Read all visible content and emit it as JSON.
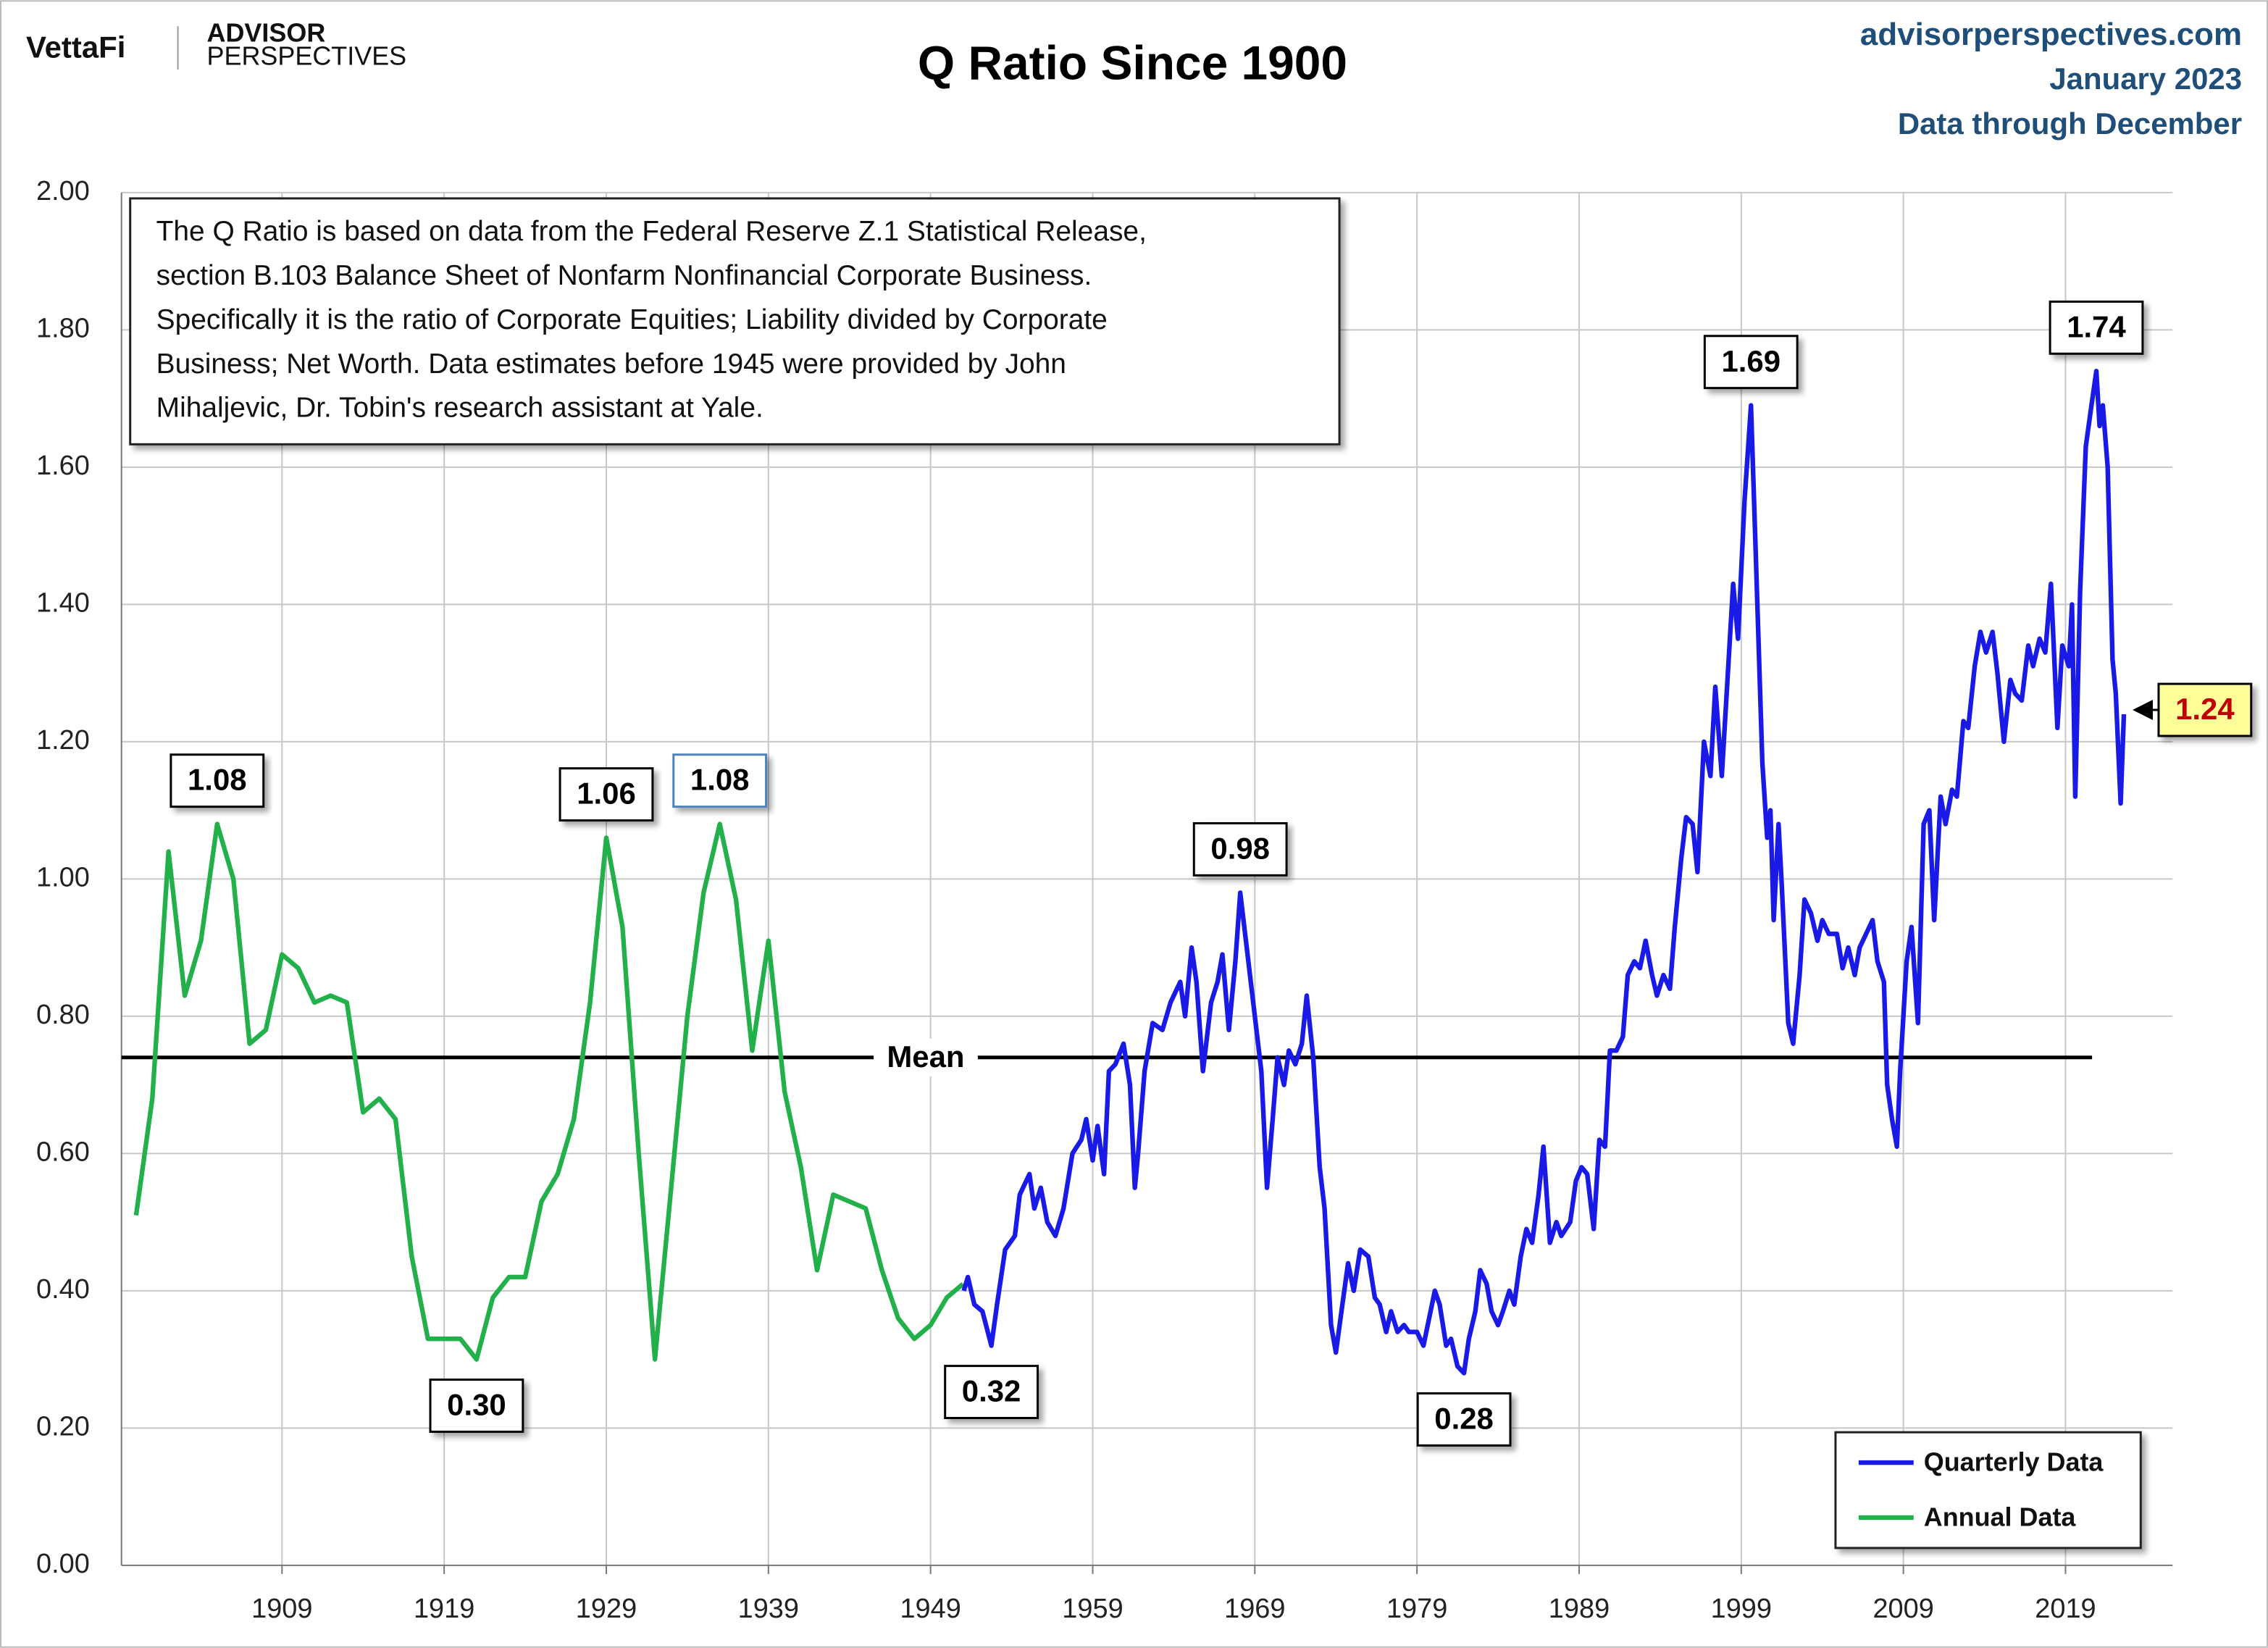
{
  "header": {
    "logo": "VettaFi",
    "brand_top": "ADVISOR",
    "brand_bottom": "PERSPECTIVES",
    "site": "advisorperspectives.com",
    "date": "January 2023",
    "data_note": "Data through December"
  },
  "chart_data": {
    "type": "line",
    "title": "Q Ratio Since 1900",
    "note": [
      "The Q Ratio is based on data from the Federal Reserve Z.1 Statistical Release,",
      "section B.103 Balance Sheet of Nonfarm Nonfinancial Corporate Business.",
      "Specifically it is the ratio  of Corporate Equities; Liability divided by Corporate",
      "Business; Net Worth.  Data estimates before 1945 were provided by John",
      "Mihaljevic, Dr. Tobin's research assistant at Yale."
    ],
    "xlim": [
      1899.1,
      2025.6
    ],
    "xticks": [
      1909,
      1919,
      1929,
      1939,
      1949,
      1959,
      1969,
      1979,
      1989,
      1999,
      2009,
      2019
    ],
    "ylim": [
      0,
      2
    ],
    "yticks": [
      {
        "value": 0,
        "label": "0.00"
      },
      {
        "value": 0.2,
        "label": "0.20"
      },
      {
        "value": 0.4,
        "label": "0.40"
      },
      {
        "value": 0.6,
        "label": "0.60"
      },
      {
        "value": 0.8,
        "label": "0.80"
      },
      {
        "value": 1,
        "label": "1.00"
      },
      {
        "value": 1.2,
        "label": "1.20"
      },
      {
        "value": 1.4,
        "label": "1.40"
      },
      {
        "value": 1.6,
        "label": "1.60"
      },
      {
        "value": 1.8,
        "label": "1.80"
      },
      {
        "value": 2,
        "label": "2.00"
      }
    ],
    "grid": true,
    "legend": "lower right",
    "mean": {
      "label": "Mean",
      "value": 0.74
    },
    "series": [
      {
        "name": "Quarterly Data",
        "color": "#1a1ae6",
        "x": [
          1951.05,
          1951.3,
          1951.7,
          1952.2,
          1952.75,
          1953.1,
          1953.6,
          1954.2,
          1954.5,
          1955.1,
          1955.4,
          1955.8,
          1956.2,
          1956.7,
          1957.2,
          1957.75,
          1958.3,
          1958.6,
          1959,
          1959.3,
          1959.7,
          1960,
          1960.4,
          1960.9,
          1961.3,
          1961.6,
          1961.8,
          1962.2,
          1962.7,
          1963.3,
          1963.8,
          1964.4,
          1964.7,
          1965.1,
          1965.4,
          1965.8,
          1966.3,
          1966.7,
          1967,
          1967.4,
          1967.8,
          1968.1,
          1968.5,
          1969,
          1969.4,
          1969.75,
          1970.1,
          1970.4,
          1970.8,
          1971.1,
          1971.5,
          1971.9,
          1972.2,
          1972.6,
          1973,
          1973.3,
          1973.7,
          1974,
          1974.4,
          1974.75,
          1975.1,
          1975.5,
          1976,
          1976.4,
          1976.7,
          1977.1,
          1977.4,
          1977.8,
          1978.2,
          1978.5,
          1979,
          1979.4,
          1979.75,
          1980.1,
          1980.4,
          1980.8,
          1981.1,
          1981.5,
          1981.9,
          1982.2,
          1982.6,
          1982.9,
          1983.3,
          1983.6,
          1984,
          1984.3,
          1984.7,
          1985,
          1985.4,
          1985.75,
          1986.1,
          1986.5,
          1986.8,
          1987.2,
          1987.6,
          1987.9,
          1988.45,
          1988.8,
          1989.15,
          1989.5,
          1989.9,
          1990.25,
          1990.6,
          1990.9,
          1991.3,
          1991.7,
          1992,
          1992.4,
          1992.75,
          1993.1,
          1993.5,
          1993.8,
          1994.2,
          1994.6,
          1994.9,
          1995.3,
          1995.6,
          1996,
          1996.3,
          1996.7,
          1997.1,
          1997.4,
          1997.8,
          1998.1,
          1998.5,
          1998.8,
          1999.2,
          1999.6,
          1999.9,
          2000.3,
          2000.6,
          2000.8,
          2001,
          2001.3,
          2001.5,
          2001.9,
          2002.2,
          2002.6,
          2002.9,
          2003.3,
          2003.7,
          2004,
          2004.4,
          2004.9,
          2005.25,
          2005.6,
          2006,
          2006.3,
          2006.7,
          2007.1,
          2007.4,
          2007.8,
          2008,
          2008.3,
          2008.6,
          2008.8,
          2009.2,
          2009.5,
          2009.9,
          2010.25,
          2010.6,
          2010.9,
          2011.3,
          2011.6,
          2012,
          2012.3,
          2012.7,
          2013,
          2013.4,
          2013.75,
          2014.1,
          2014.5,
          2014.8,
          2015.2,
          2015.6,
          2015.9,
          2016.3,
          2016.7,
          2017,
          2017.4,
          2017.75,
          2018.1,
          2018.5,
          2018.8,
          2019.2,
          2019.4,
          2019.6,
          2019.9,
          2020.25,
          2020.6,
          2020.9,
          2021.1,
          2021.3,
          2021.6,
          2021.9,
          2022.1,
          2022.4,
          2022.6
        ],
        "values": [
          0.4,
          0.42,
          0.38,
          0.37,
          0.32,
          0.38,
          0.46,
          0.48,
          0.54,
          0.57,
          0.52,
          0.55,
          0.5,
          0.48,
          0.52,
          0.6,
          0.62,
          0.65,
          0.59,
          0.64,
          0.57,
          0.72,
          0.73,
          0.76,
          0.7,
          0.55,
          0.6,
          0.72,
          0.79,
          0.78,
          0.82,
          0.85,
          0.8,
          0.9,
          0.85,
          0.72,
          0.82,
          0.85,
          0.89,
          0.78,
          0.88,
          0.98,
          0.9,
          0.8,
          0.72,
          0.55,
          0.65,
          0.74,
          0.7,
          0.75,
          0.73,
          0.76,
          0.83,
          0.74,
          0.58,
          0.52,
          0.35,
          0.31,
          0.38,
          0.44,
          0.4,
          0.46,
          0.45,
          0.39,
          0.38,
          0.34,
          0.37,
          0.34,
          0.35,
          0.34,
          0.34,
          0.32,
          0.36,
          0.4,
          0.38,
          0.32,
          0.33,
          0.29,
          0.28,
          0.33,
          0.37,
          0.43,
          0.41,
          0.37,
          0.35,
          0.37,
          0.4,
          0.38,
          0.45,
          0.49,
          0.47,
          0.54,
          0.61,
          0.47,
          0.5,
          0.48,
          0.5,
          0.56,
          0.58,
          0.57,
          0.49,
          0.62,
          0.61,
          0.75,
          0.75,
          0.77,
          0.86,
          0.88,
          0.87,
          0.91,
          0.86,
          0.83,
          0.86,
          0.84,
          0.93,
          1.03,
          1.09,
          1.08,
          1.01,
          1.2,
          1.15,
          1.28,
          1.15,
          1.27,
          1.43,
          1.35,
          1.55,
          1.69,
          1.47,
          1.17,
          1.06,
          1.1,
          0.94,
          1.08,
          0.99,
          0.79,
          0.76,
          0.86,
          0.97,
          0.95,
          0.91,
          0.94,
          0.92,
          0.92,
          0.87,
          0.9,
          0.86,
          0.9,
          0.92,
          0.94,
          0.88,
          0.85,
          0.7,
          0.65,
          0.61,
          0.72,
          0.88,
          0.93,
          0.79,
          1.08,
          1.1,
          0.94,
          1.12,
          1.08,
          1.13,
          1.12,
          1.23,
          1.22,
          1.31,
          1.36,
          1.33,
          1.36,
          1.3,
          1.2,
          1.29,
          1.27,
          1.26,
          1.34,
          1.31,
          1.35,
          1.33,
          1.43,
          1.22,
          1.34,
          1.31,
          1.4,
          1.12,
          1.42,
          1.63,
          1.69,
          1.74,
          1.66,
          1.69,
          1.6,
          1.32,
          1.27,
          1.11,
          1.24
        ]
      },
      {
        "name": "Annual Data",
        "color": "#22b04b",
        "x": [
          1900,
          1901,
          1902,
          1903,
          1904,
          1905,
          1906,
          1907,
          1908,
          1909,
          1910,
          1911,
          1912,
          1913,
          1914,
          1915,
          1916,
          1917,
          1918,
          1919,
          1920,
          1921,
          1922,
          1923,
          1924,
          1925,
          1926,
          1927,
          1928,
          1929,
          1930,
          1931,
          1932,
          1933,
          1934,
          1935,
          1936,
          1937,
          1938,
          1939,
          1940,
          1941,
          1942,
          1943,
          1944,
          1945,
          1946,
          1947,
          1948,
          1949,
          1950,
          1951
        ],
        "values": [
          0.51,
          0.68,
          1.04,
          0.83,
          0.91,
          1.08,
          1.0,
          0.76,
          0.78,
          0.89,
          0.87,
          0.82,
          0.83,
          0.82,
          0.66,
          0.68,
          0.65,
          0.45,
          0.33,
          0.33,
          0.33,
          0.3,
          0.39,
          0.42,
          0.42,
          0.53,
          0.57,
          0.65,
          0.82,
          1.06,
          0.93,
          0.6,
          0.3,
          0.55,
          0.8,
          0.98,
          1.08,
          0.97,
          0.75,
          0.91,
          0.69,
          0.58,
          0.43,
          0.54,
          0.53,
          0.52,
          0.43,
          0.36,
          0.33,
          0.35,
          0.39,
          0.41
        ]
      }
    ],
    "annotations": [
      {
        "x": 1905,
        "y": 1.08,
        "label": "1.08",
        "position": "above"
      },
      {
        "x": 1921,
        "y": 0.3,
        "label": "0.30",
        "position": "below"
      },
      {
        "x": 1929,
        "y": 1.06,
        "label": "1.06",
        "position": "above"
      },
      {
        "x": 1936,
        "y": 1.08,
        "label": "1.08",
        "position": "above",
        "border_color": "#4f81bd"
      },
      {
        "x": 1952.75,
        "y": 0.32,
        "label": "0.32",
        "position": "below"
      },
      {
        "x": 1968.1,
        "y": 0.98,
        "label": "0.98",
        "position": "above"
      },
      {
        "x": 1981.9,
        "y": 0.28,
        "label": "0.28",
        "position": "below"
      },
      {
        "x": 1999.6,
        "y": 1.69,
        "label": "1.69",
        "position": "above"
      },
      {
        "x": 2020.9,
        "y": 1.74,
        "label": "1.74",
        "position": "above"
      },
      {
        "x": 2022.6,
        "y": 1.24,
        "label": "1.24",
        "position": "right",
        "background": "#ffff99",
        "text_color": "#c00000"
      }
    ]
  }
}
